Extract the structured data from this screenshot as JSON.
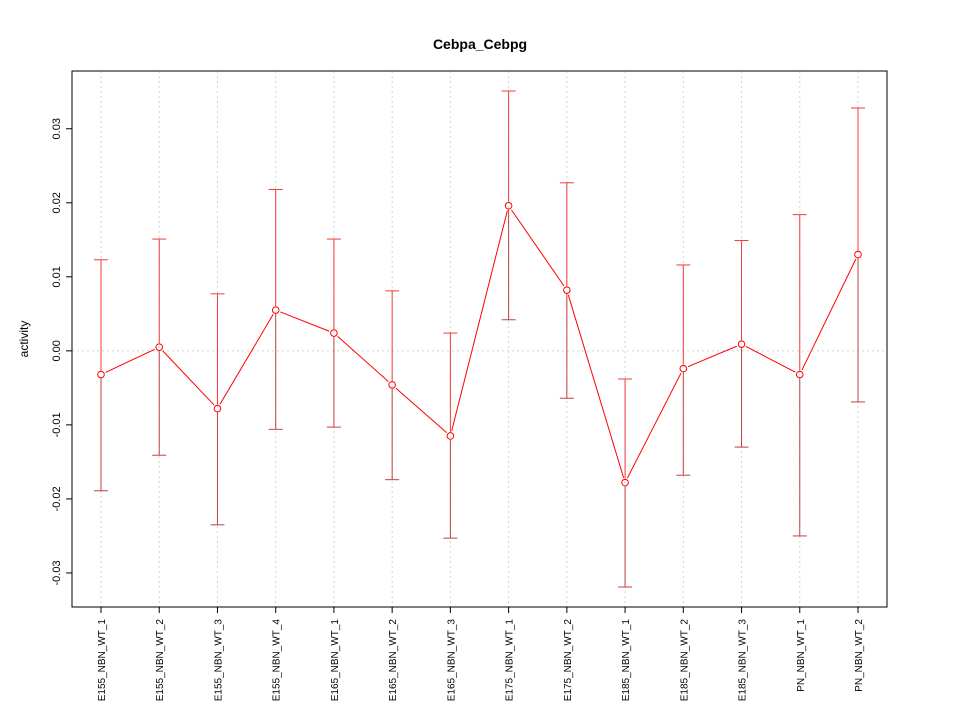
{
  "chart_data": {
    "type": "line",
    "title": "Cebpa_Cebpg",
    "xlabel": "",
    "ylabel": "activity",
    "ylim": [
      -0.0346,
      0.0378
    ],
    "yticks": [
      -0.03,
      -0.02,
      -0.01,
      0.0,
      0.01,
      0.02,
      0.03
    ],
    "ytick_labels": [
      "-0.03",
      "-0.02",
      "-0.01",
      "0.00",
      "0.01",
      "0.02",
      "0.03"
    ],
    "grid": true,
    "categories": [
      "E155_NBN_WT_1",
      "E155_NBN_WT_2",
      "E155_NBN_WT_3",
      "E155_NBN_WT_4",
      "E165_NBN_WT_1",
      "E165_NBN_WT_2",
      "E165_NBN_WT_3",
      "E175_NBN_WT_1",
      "E175_NBN_WT_2",
      "E185_NBN_WT_1",
      "E185_NBN_WT_2",
      "E185_NBN_WT_3",
      "PN_NBN_WT_1",
      "PN_NBN_WT_2"
    ],
    "series": [
      {
        "name": "activity",
        "color": "#ff0000",
        "values": [
          -0.0032,
          0.0005,
          -0.0078,
          0.0055,
          0.0024,
          -0.0046,
          -0.0115,
          0.0196,
          0.0082,
          -0.0178,
          -0.0024,
          0.0009,
          -0.0032,
          0.013
        ],
        "upper": [
          0.0123,
          0.0151,
          0.0077,
          0.0218,
          0.0151,
          0.0081,
          0.0024,
          0.0351,
          0.0227,
          -0.0038,
          0.0116,
          0.0149,
          0.0184,
          0.0328
        ],
        "lower": [
          -0.0189,
          -0.0141,
          -0.0235,
          -0.0106,
          -0.0103,
          -0.0174,
          -0.0253,
          0.0042,
          -0.0064,
          -0.0319,
          -0.0168,
          -0.013,
          -0.025,
          -0.0069
        ]
      }
    ]
  }
}
